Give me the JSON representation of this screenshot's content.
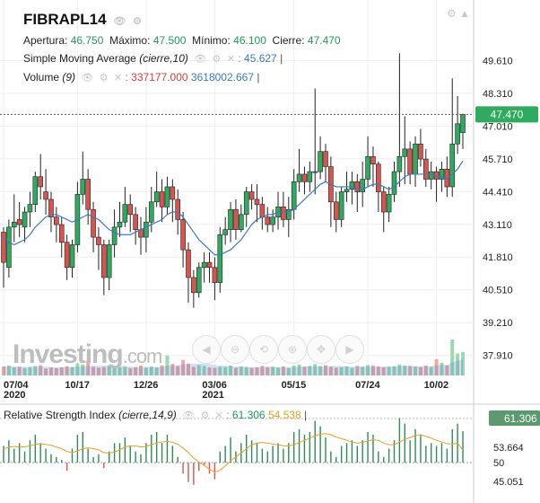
{
  "symbol": "FIBRAPL14",
  "ohlc": {
    "open_label": "Apertura:",
    "open": "46.750",
    "high_label": "Máximo:",
    "high": "47.500",
    "low_label": "Mínimo:",
    "low": "46.100",
    "close_label": "Cierre:",
    "close": "47.470"
  },
  "sma": {
    "label": "Simple Moving Average",
    "params": "(cierre,10)",
    "value": "45.627"
  },
  "volume": {
    "label": "Volume",
    "params": "(9)",
    "v1": "337177.000",
    "v2": "3618002.667"
  },
  "rsi": {
    "label": "Relative Strength Index",
    "params": "(cierre,14,9)",
    "v1": "61.306",
    "v2": "54.538"
  },
  "logo": {
    "main": "Investing",
    "suffix": ".com"
  },
  "colors": {
    "up": "#2eab5f",
    "down": "#d9534f",
    "sma": "#3b78c4",
    "rsi_signal": "#e8a020",
    "badge": "#2eab5f"
  },
  "chart_data": [
    {
      "type": "candlestick",
      "title": "FIBRAPL14",
      "y_ticks": [
        "49.610",
        "48.310",
        "47.010",
        "45.710",
        "44.410",
        "43.110",
        "41.810",
        "40.510",
        "39.210",
        "37.910"
      ],
      "ylim": [
        37.4,
        50.3
      ],
      "x_ticks": [
        {
          "label": "07/04",
          "sub": "2020"
        },
        {
          "label": "10/17",
          "sub": ""
        },
        {
          "label": "12/26",
          "sub": ""
        },
        {
          "label": "03/06",
          "sub": "2021"
        },
        {
          "label": "05/15",
          "sub": ""
        },
        {
          "label": "07/24",
          "sub": ""
        },
        {
          "label": "10/02",
          "sub": ""
        }
      ],
      "last_price": "47.470",
      "candles": [
        [
          42.8,
          41.6,
          43.0,
          40.6
        ],
        [
          41.4,
          43.0,
          43.3,
          41.0
        ],
        [
          43.0,
          43.2,
          44.3,
          42.4
        ],
        [
          43.3,
          43.1,
          44.0,
          42.6
        ],
        [
          43.0,
          43.6,
          43.8,
          42.4
        ],
        [
          43.6,
          43.9,
          44.4,
          43.0
        ],
        [
          43.9,
          45.0,
          45.2,
          43.6
        ],
        [
          45.0,
          44.6,
          45.9,
          44.1
        ],
        [
          44.4,
          44.1,
          45.3,
          43.5
        ],
        [
          44.1,
          43.4,
          44.4,
          42.8
        ],
        [
          43.4,
          43.1,
          43.8,
          42.4
        ],
        [
          43.1,
          42.4,
          43.4,
          41.8
        ],
        [
          42.4,
          41.4,
          42.7,
          40.9
        ],
        [
          41.4,
          42.3,
          42.5,
          41.0
        ],
        [
          42.3,
          44.3,
          44.8,
          42.0
        ],
        [
          44.3,
          44.9,
          46.0,
          43.9
        ],
        [
          44.9,
          43.7,
          45.3,
          43.1
        ],
        [
          43.7,
          42.6,
          44.0,
          42.0
        ],
        [
          42.6,
          42.3,
          43.0,
          41.3
        ],
        [
          42.3,
          41.0,
          42.5,
          40.3
        ],
        [
          41.0,
          42.3,
          42.5,
          40.5
        ],
        [
          42.3,
          43.0,
          43.7,
          41.8
        ],
        [
          43.0,
          43.2,
          44.0,
          42.6
        ],
        [
          43.2,
          43.9,
          44.6,
          43.0
        ],
        [
          43.9,
          43.5,
          44.3,
          42.8
        ],
        [
          43.5,
          42.9,
          43.8,
          42.3
        ],
        [
          42.9,
          42.6,
          43.4,
          41.9
        ],
        [
          42.6,
          43.2,
          43.8,
          42.0
        ],
        [
          43.2,
          44.0,
          44.6,
          42.8
        ],
        [
          44.0,
          44.4,
          45.2,
          43.8
        ],
        [
          44.4,
          43.8,
          44.9,
          43.2
        ],
        [
          43.8,
          44.6,
          45.0,
          43.5
        ],
        [
          44.6,
          44.1,
          44.9,
          43.2
        ],
        [
          44.1,
          43.3,
          44.5,
          42.7
        ],
        [
          43.3,
          42.1,
          43.6,
          41.4
        ],
        [
          42.1,
          41.0,
          42.4,
          40.0
        ],
        [
          41.0,
          40.4,
          41.3,
          39.8
        ],
        [
          40.4,
          41.4,
          41.6,
          40.2
        ],
        [
          41.4,
          41.6,
          42.0,
          40.8
        ],
        [
          41.6,
          41.4,
          42.0,
          40.8
        ],
        [
          41.4,
          40.8,
          41.8,
          40.1
        ],
        [
          40.8,
          42.7,
          43.0,
          40.4
        ],
        [
          42.7,
          42.9,
          43.4,
          42.3
        ],
        [
          42.9,
          43.7,
          44.0,
          42.4
        ],
        [
          43.7,
          42.9,
          44.1,
          42.5
        ],
        [
          42.9,
          43.5,
          43.9,
          42.8
        ],
        [
          43.5,
          44.4,
          44.6,
          43.0
        ],
        [
          44.4,
          44.1,
          44.7,
          43.7
        ],
        [
          44.1,
          43.9,
          44.7,
          43.2
        ],
        [
          43.9,
          43.4,
          44.2,
          42.9
        ],
        [
          43.4,
          43.1,
          43.8,
          42.8
        ],
        [
          43.1,
          43.4,
          43.7,
          42.8
        ],
        [
          43.4,
          43.8,
          44.4,
          42.9
        ],
        [
          43.8,
          43.3,
          44.4,
          43.0
        ],
        [
          43.3,
          43.7,
          44.2,
          42.6
        ],
        [
          43.7,
          44.8,
          45.3,
          43.3
        ],
        [
          44.8,
          45.1,
          46.1,
          44.4
        ],
        [
          45.1,
          44.8,
          45.4,
          44.3
        ],
        [
          44.8,
          45.2,
          45.6,
          44.4
        ],
        [
          45.2,
          45.2,
          48.5,
          44.3
        ],
        [
          45.2,
          46.0,
          46.6,
          44.9
        ],
        [
          46.0,
          45.4,
          46.3,
          44.8
        ],
        [
          45.4,
          44.0,
          45.8,
          43.0
        ],
        [
          44.0,
          43.3,
          44.4,
          42.8
        ],
        [
          43.3,
          44.4,
          44.6,
          43.0
        ],
        [
          44.4,
          44.5,
          45.2,
          44.0
        ],
        [
          44.5,
          44.8,
          45.2,
          43.9
        ],
        [
          44.8,
          44.4,
          45.1,
          43.6
        ],
        [
          44.4,
          44.9,
          45.6,
          43.8
        ],
        [
          44.9,
          45.8,
          46.6,
          44.6
        ],
        [
          45.8,
          45.5,
          46.2,
          44.6
        ],
        [
          45.5,
          44.4,
          45.6,
          43.6
        ],
        [
          44.4,
          43.6,
          44.6,
          42.8
        ],
        [
          43.6,
          44.3,
          44.6,
          43.2
        ],
        [
          44.3,
          45.2,
          45.6,
          44.0
        ],
        [
          45.2,
          45.8,
          49.9,
          44.6
        ],
        [
          45.8,
          46.1,
          47.4,
          44.7
        ],
        [
          46.1,
          45.1,
          46.4,
          44.7
        ],
        [
          45.1,
          46.3,
          46.6,
          44.6
        ],
        [
          46.3,
          45.7,
          46.9,
          45.4
        ],
        [
          45.7,
          44.9,
          46.1,
          44.6
        ],
        [
          44.9,
          45.2,
          45.6,
          44.5
        ],
        [
          45.2,
          44.9,
          45.4,
          44.0
        ],
        [
          44.9,
          45.3,
          45.6,
          44.4
        ],
        [
          45.3,
          44.6,
          45.8,
          44.2
        ],
        [
          44.6,
          46.3,
          48.9,
          44.2
        ],
        [
          46.3,
          47.1,
          48.2,
          45.9
        ],
        [
          46.75,
          47.47,
          47.5,
          46.1
        ]
      ],
      "sma_values": [
        42.6,
        42.4,
        42.3,
        42.4,
        42.5,
        42.7,
        43.0,
        43.2,
        43.4,
        43.5,
        43.5,
        43.4,
        43.3,
        43.2,
        43.3,
        43.4,
        43.5,
        43.4,
        43.3,
        43.1,
        42.9,
        42.8,
        42.7,
        42.7,
        42.7,
        42.8,
        42.9,
        43.0,
        43.1,
        43.2,
        43.3,
        43.5,
        43.6,
        43.6,
        43.4,
        43.1,
        42.8,
        42.5,
        42.3,
        42.1,
        41.9,
        41.9,
        42.0,
        42.1,
        42.3,
        42.5,
        42.8,
        43.1,
        43.3,
        43.4,
        43.5,
        43.5,
        43.6,
        43.6,
        43.6,
        43.7,
        43.9,
        44.1,
        44.3,
        44.5,
        44.7,
        44.8,
        44.7,
        44.6,
        44.6,
        44.6,
        44.6,
        44.5,
        44.5,
        44.6,
        44.7,
        44.7,
        44.6,
        44.5,
        44.6,
        44.8,
        45.0,
        45.1,
        45.1,
        45.1,
        45.1,
        45.1,
        45.0,
        45.0,
        44.9,
        45.1,
        45.3,
        45.627
      ],
      "volume_values": [
        3.1,
        3.4,
        2.8,
        3.0,
        2.6,
        2.9,
        3.3,
        3.6,
        2.4,
        2.7,
        2.5,
        2.8,
        3.2,
        2.9,
        4.2,
        3.8,
        5.1,
        3.0,
        2.7,
        2.9,
        3.3,
        2.6,
        2.8,
        3.0,
        2.5,
        2.9,
        3.4,
        2.7,
        3.1,
        2.8,
        3.5,
        6.9,
        4.0,
        3.2,
        5.4,
        4.1,
        3.0,
        3.6,
        3.3,
        2.8,
        2.6,
        3.0,
        2.9,
        3.4,
        2.7,
        3.1,
        2.9,
        2.6,
        2.8,
        3.3,
        2.9,
        3.0,
        2.7,
        3.1,
        2.6,
        3.4,
        3.8,
        3.0,
        3.3,
        3.9,
        3.2,
        3.5,
        3.0,
        2.7,
        2.9,
        3.1,
        2.6,
        3.3,
        3.0,
        3.6,
        3.4,
        3.1,
        2.8,
        3.0,
        3.2,
        3.8,
        3.4,
        3.3,
        3.1,
        2.9,
        3.4,
        3.0,
        5.6,
        4.4,
        3.5,
        12.4,
        7.6,
        8.1
      ]
    },
    {
      "type": "bar",
      "title": "Relative Strength Index",
      "y_ticks": [
        "53.664",
        "50",
        "45.051"
      ],
      "rsi_values": [
        56,
        58,
        55,
        57,
        54,
        58,
        60,
        57,
        55,
        53,
        52,
        51,
        47,
        55,
        60,
        61,
        55,
        52,
        53,
        48,
        54,
        57,
        57,
        59,
        56,
        54,
        53,
        57,
        60,
        61,
        57,
        60,
        56,
        52,
        46,
        43,
        42,
        47,
        49,
        46,
        44,
        54,
        56,
        59,
        54,
        57,
        60,
        58,
        57,
        55,
        54,
        56,
        57,
        55,
        57,
        61,
        62,
        60,
        61,
        65,
        63,
        59,
        54,
        52,
        56,
        57,
        58,
        56,
        58,
        61,
        60,
        54,
        52,
        55,
        58,
        66,
        64,
        58,
        62,
        60,
        56,
        57,
        56,
        57,
        55,
        62,
        64,
        61.306
      ],
      "signal_values": [
        55,
        55.5,
        55.8,
        55.6,
        55.7,
        56,
        56.5,
        56.8,
        56.5,
        56.2,
        55.6,
        55,
        54,
        53.6,
        54.2,
        55,
        55.3,
        55,
        54.6,
        53.6,
        53.4,
        53.8,
        54.6,
        55.6,
        56,
        56,
        55.6,
        55.8,
        56.5,
        57,
        57.4,
        57.6,
        57.3,
        56.6,
        55.2,
        53.6,
        51.6,
        50.2,
        49,
        47.6,
        46.6,
        47.2,
        48.8,
        50.6,
        52,
        53.4,
        55,
        56.4,
        57,
        57.2,
        57,
        56.6,
        56.4,
        56,
        56,
        56.4,
        57.2,
        58,
        58.8,
        59.6,
        60.2,
        60.4,
        60,
        59.2,
        58.6,
        58,
        57.4,
        57,
        57.2,
        57.8,
        58.2,
        58,
        57,
        56.4,
        56.4,
        57.4,
        58.4,
        59,
        59.8,
        60,
        59.4,
        58.8,
        58,
        57.4,
        56.8,
        56.6,
        57,
        54.538
      ]
    }
  ]
}
